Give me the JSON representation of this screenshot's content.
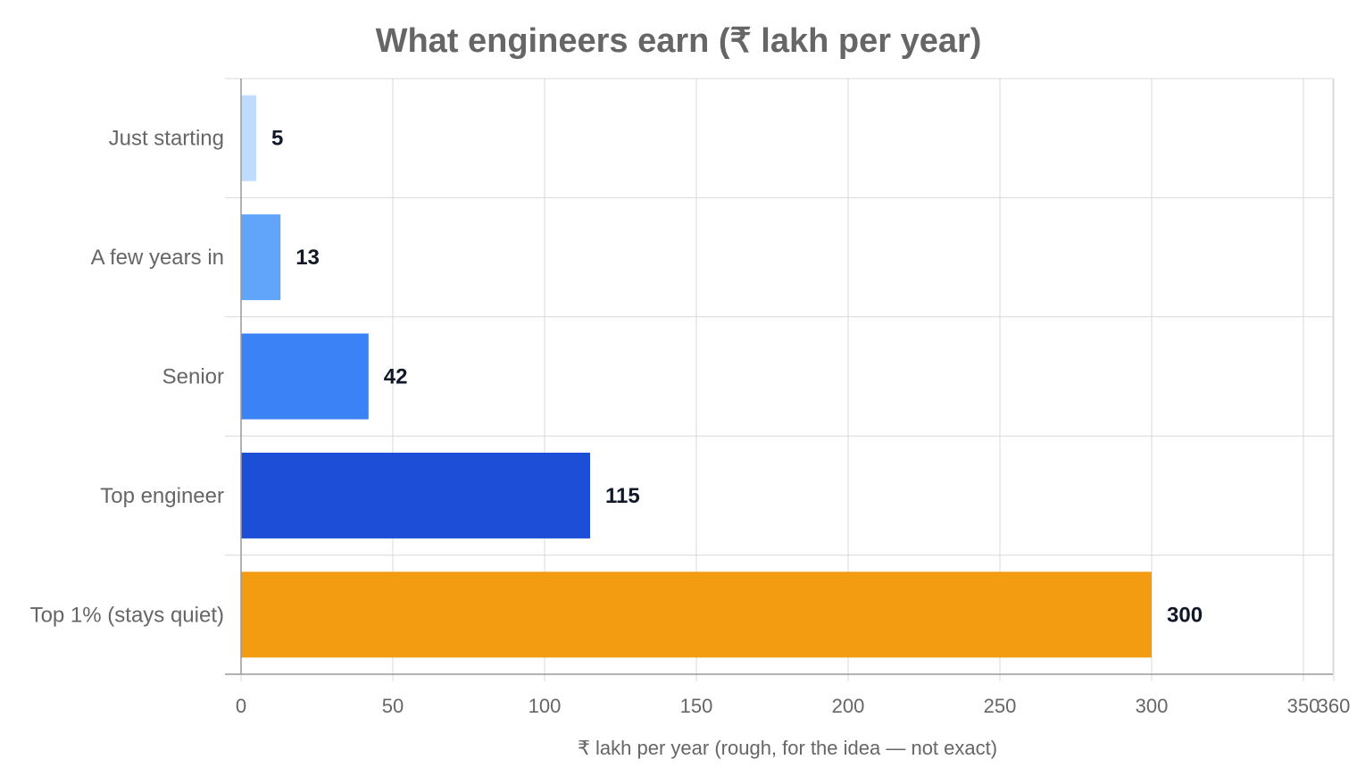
{
  "chart_data": {
    "type": "bar",
    "orientation": "horizontal",
    "title": "What engineers earn (₹ lakh per year)",
    "xlabel": "₹ lakh per year  (rough, for the idea — not exact)",
    "ylabel": "",
    "categories": [
      "Just starting",
      "A few years in",
      "Senior",
      "Top engineer",
      "Top 1% (stays quiet)"
    ],
    "values": [
      5,
      13,
      42,
      115,
      300
    ],
    "data_labels": [
      "5",
      "13",
      "42",
      "115",
      "300"
    ],
    "colors": [
      "#bfdbfe",
      "#60a5fa",
      "#3b82f6",
      "#1d4ed8",
      "#f39c12"
    ],
    "xlim": [
      0,
      360
    ],
    "xticks": [
      0,
      50,
      100,
      150,
      200,
      250,
      300,
      350,
      360
    ],
    "xtick_labels": [
      "0",
      "50",
      "100",
      "150",
      "200",
      "250",
      "300",
      "350",
      "360"
    ],
    "grid": true,
    "legend": "none"
  }
}
